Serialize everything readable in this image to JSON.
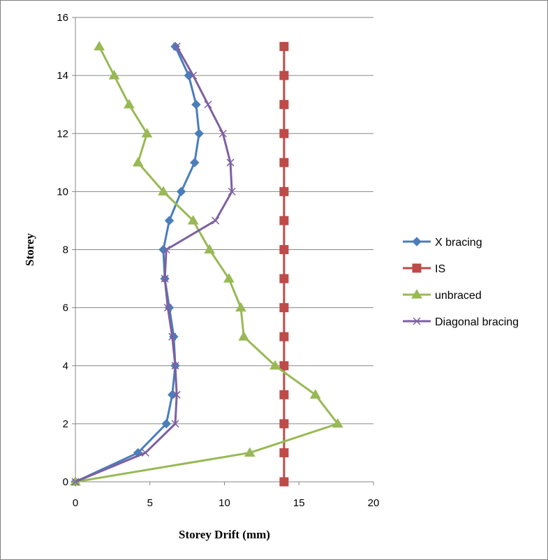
{
  "chart_data": {
    "type": "line",
    "xlabel": "Storey Drift (mm)",
    "ylabel": "Storey",
    "xlim": [
      0,
      20
    ],
    "ylim": [
      0,
      16
    ],
    "xticks": [
      0,
      5,
      10,
      15,
      20
    ],
    "yticks": [
      0,
      2,
      4,
      6,
      8,
      10,
      12,
      14,
      16
    ],
    "grid": "horizontal",
    "legend_position": "right",
    "series": [
      {
        "name": "X bracing",
        "color": "#4a7ebb",
        "marker": "diamond",
        "x": [
          0,
          4.2,
          6.1,
          6.5,
          6.7,
          6.6,
          6.3,
          6.0,
          5.9,
          6.3,
          7.1,
          8.0,
          8.3,
          8.1,
          7.6,
          6.7
        ],
        "y": [
          0,
          1,
          2,
          3,
          4,
          5,
          6,
          7,
          8,
          9,
          10,
          11,
          12,
          13,
          14,
          15
        ]
      },
      {
        "name": "IS",
        "color": "#be4b48",
        "marker": "square",
        "x": [
          14,
          14,
          14,
          14,
          14,
          14,
          14,
          14,
          14,
          14,
          14,
          14,
          14,
          14,
          14,
          14
        ],
        "y": [
          0,
          1,
          2,
          3,
          4,
          5,
          6,
          7,
          8,
          9,
          10,
          11,
          12,
          13,
          14,
          15
        ]
      },
      {
        "name": "unbraced",
        "color": "#98b954",
        "marker": "triangle",
        "x": [
          0,
          11.7,
          17.6,
          16.1,
          13.4,
          11.3,
          11.1,
          10.3,
          9.0,
          7.9,
          5.9,
          4.2,
          4.8,
          3.6,
          2.6,
          1.6
        ],
        "y": [
          0,
          1,
          2,
          3,
          4,
          5,
          6,
          7,
          8,
          9,
          10,
          11,
          12,
          13,
          14,
          15
        ]
      },
      {
        "name": "Diagonal bracing",
        "color": "#7d60a0",
        "marker": "x",
        "x": [
          0,
          4.7,
          6.7,
          6.8,
          6.7,
          6.5,
          6.2,
          6.0,
          6.1,
          9.4,
          10.5,
          10.4,
          9.9,
          8.9,
          7.9,
          6.8
        ],
        "y": [
          0,
          1,
          2,
          3,
          4,
          5,
          6,
          7,
          8,
          9,
          10,
          11,
          12,
          13,
          14,
          15
        ]
      }
    ]
  }
}
